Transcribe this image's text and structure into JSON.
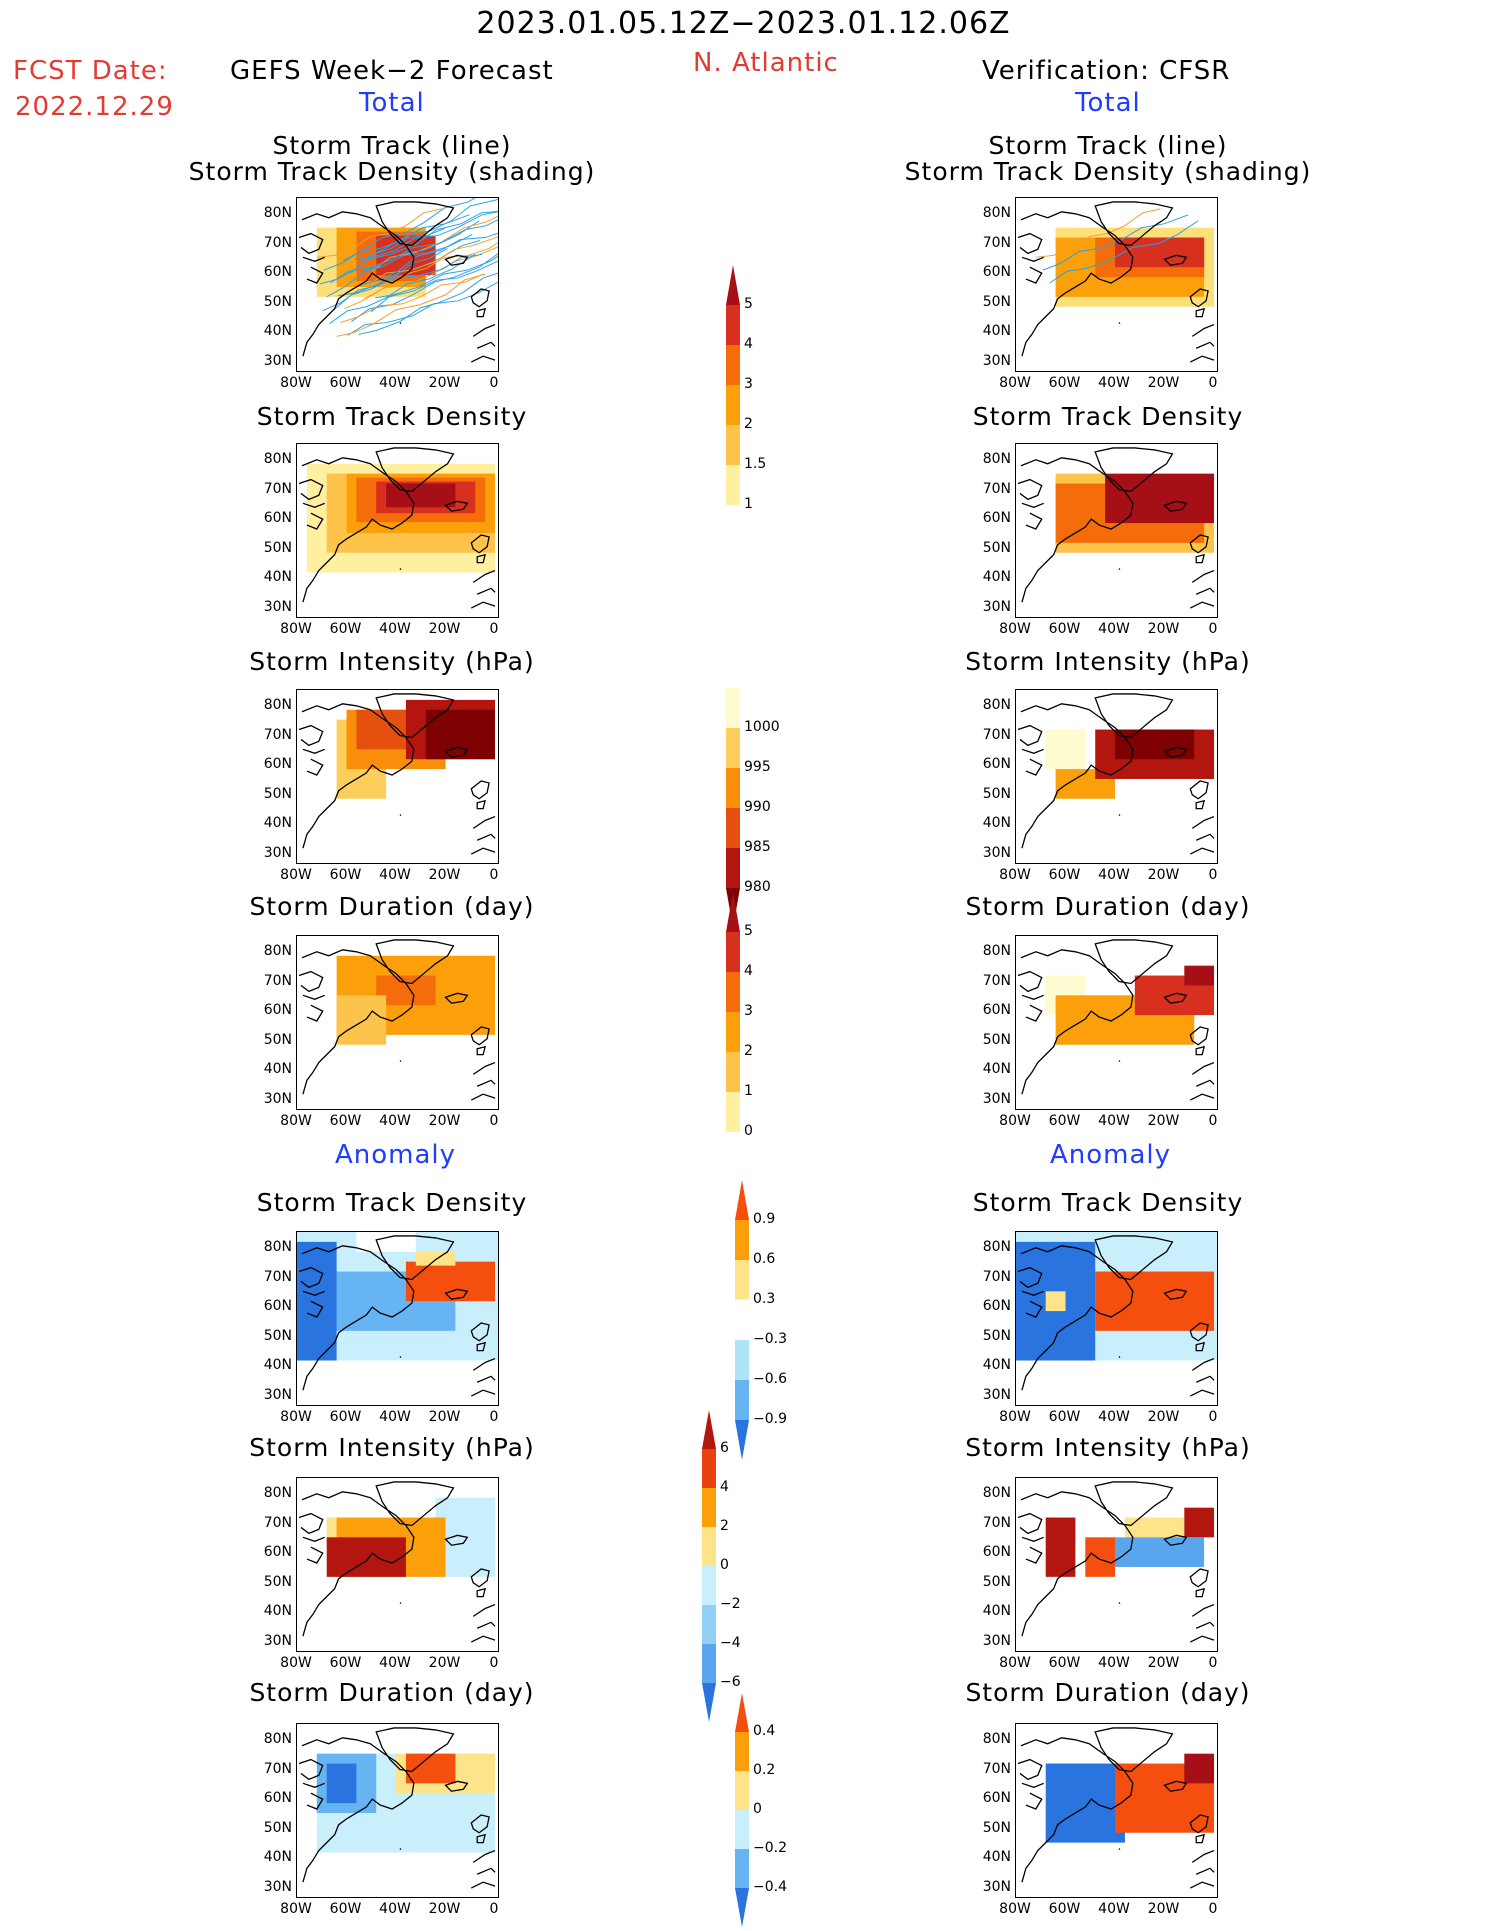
{
  "header": {
    "date_range": "2023.01.05.12Z−2023.01.12.06Z",
    "fcst_label": "FCST Date:",
    "fcst_date": "2022.12.29",
    "forecast_title": "GEFS Week−2 Forecast",
    "region": "N. Atlantic",
    "verification_title": "Verification: CFSR",
    "total_label": "Total",
    "anomaly_label": "Anomaly"
  },
  "panels": {
    "track_line": "Storm Track (line)",
    "track_shading": "Storm Track Density (shading)",
    "track_density": "Storm Track Density",
    "intensity": "Storm Intensity (hPa)",
    "duration": "Storm Duration (day)"
  },
  "axes": {
    "lat_ticks": [
      "80N",
      "70N",
      "60N",
      "50N",
      "40N",
      "30N"
    ],
    "lon_ticks": [
      "80W",
      "60W",
      "40W",
      "20W",
      "0"
    ]
  },
  "colorbars": {
    "track_density": {
      "labels": [
        "5",
        "4",
        "3",
        "2",
        "1.5",
        "1"
      ],
      "colors": [
        "#a50f15",
        "#d7301f",
        "#f46d0a",
        "#fb9f0b",
        "#fdc34a",
        "#fff0a0"
      ]
    },
    "intensity": {
      "labels": [
        "1000",
        "995",
        "990",
        "985",
        "980"
      ],
      "colors": [
        "#fffbd0",
        "#fdcf5a",
        "#f98e0a",
        "#e6500f",
        "#b3160f",
        "#7f0000"
      ]
    },
    "duration": {
      "labels": [
        "5",
        "4",
        "3",
        "2",
        "1",
        "0"
      ],
      "colors": [
        "#a50f15",
        "#d7301f",
        "#f46d0a",
        "#fb9f0b",
        "#fdc34a",
        "#fff0a0"
      ]
    },
    "anom_density": {
      "labels": [
        "0.9",
        "0.6",
        "0.3",
        "−0.3",
        "−0.6",
        "−0.9"
      ],
      "colors": [
        "#f44f0f",
        "#fb9f0b",
        "#fde488",
        "#ffffff",
        "#aee4f8",
        "#66b4f2",
        "#2a74e0"
      ]
    },
    "anom_intensity": {
      "labels": [
        "6",
        "4",
        "2",
        "0",
        "−2",
        "−4",
        "−6"
      ],
      "colors": [
        "#b3160f",
        "#e8400f",
        "#fb9f0b",
        "#fde488",
        "#c9eefc",
        "#93d0f6",
        "#5aa6ee",
        "#2a74e0"
      ]
    },
    "anom_duration": {
      "labels": [
        "0.4",
        "0.2",
        "0",
        "−0.2",
        "−0.4"
      ],
      "colors": [
        "#f44f0f",
        "#fb9f0b",
        "#fde488",
        "#c9eefc",
        "#66b4f2",
        "#2a74e0"
      ]
    }
  }
}
